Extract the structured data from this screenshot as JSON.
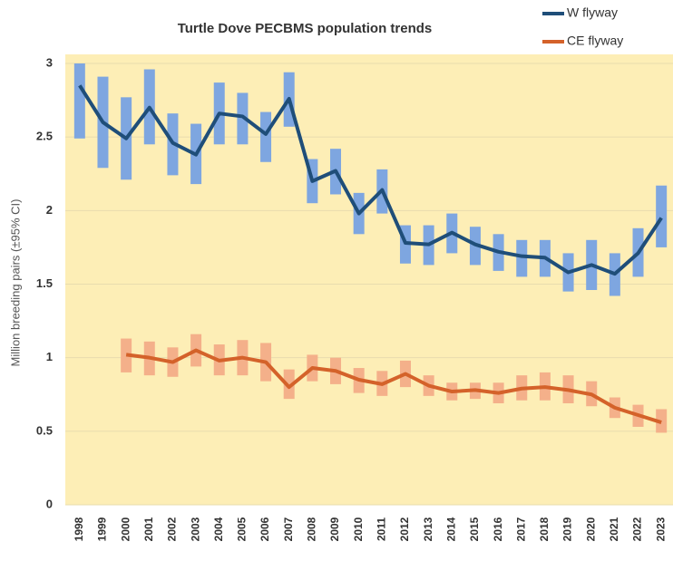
{
  "chart_data": {
    "type": "line",
    "title": "Turtle Dove PECBMS population trends",
    "ylabel": "Million breeding pairs (±95% CI)",
    "categories": [
      "1998",
      "1999",
      "2000",
      "2001",
      "2002",
      "2003",
      "2004",
      "2005",
      "2006",
      "2007",
      "2008",
      "2009",
      "2010",
      "2011",
      "2012",
      "2013",
      "2014",
      "2015",
      "2016",
      "2017",
      "2018",
      "2019",
      "2020",
      "2021",
      "2022",
      "2023"
    ],
    "series": [
      {
        "name": "W flyway",
        "color": "#1f4e79",
        "ci_color": "#7ea6e0",
        "values": [
          2.85,
          2.6,
          2.49,
          2.7,
          2.46,
          2.38,
          2.66,
          2.64,
          2.52,
          2.76,
          2.2,
          2.27,
          1.98,
          2.14,
          1.78,
          1.77,
          1.85,
          1.77,
          1.72,
          1.69,
          1.68,
          1.58,
          1.63,
          1.57,
          1.71,
          1.95
        ],
        "lower": [
          2.49,
          2.29,
          2.21,
          2.45,
          2.24,
          2.18,
          2.45,
          2.45,
          2.33,
          2.57,
          2.05,
          2.11,
          1.84,
          1.98,
          1.64,
          1.63,
          1.71,
          1.63,
          1.59,
          1.55,
          1.55,
          1.45,
          1.46,
          1.42,
          1.55,
          1.75
        ],
        "upper": [
          3.0,
          2.91,
          2.77,
          2.96,
          2.66,
          2.59,
          2.87,
          2.8,
          2.67,
          2.94,
          2.35,
          2.42,
          2.12,
          2.28,
          1.9,
          1.9,
          1.98,
          1.89,
          1.84,
          1.8,
          1.8,
          1.71,
          1.8,
          1.71,
          1.88,
          2.17
        ]
      },
      {
        "name": "CE flyway",
        "color": "#d4622a",
        "ci_color": "#f4b08a",
        "values": [
          null,
          null,
          1.02,
          1.0,
          0.97,
          1.05,
          0.98,
          1.0,
          0.97,
          0.8,
          0.93,
          0.91,
          0.85,
          0.82,
          0.89,
          0.81,
          0.77,
          0.78,
          0.76,
          0.79,
          0.8,
          0.78,
          0.75,
          0.66,
          0.61,
          0.56
        ],
        "lower": [
          null,
          null,
          0.9,
          0.88,
          0.87,
          0.94,
          0.88,
          0.88,
          0.84,
          0.72,
          0.84,
          0.82,
          0.76,
          0.74,
          0.8,
          0.74,
          0.71,
          0.72,
          0.69,
          0.71,
          0.71,
          0.69,
          0.67,
          0.59,
          0.53,
          0.49
        ],
        "upper": [
          null,
          null,
          1.13,
          1.11,
          1.07,
          1.16,
          1.09,
          1.12,
          1.1,
          0.92,
          1.02,
          1.0,
          0.93,
          0.91,
          0.98,
          0.88,
          0.83,
          0.83,
          0.83,
          0.88,
          0.9,
          0.88,
          0.84,
          0.73,
          0.68,
          0.65
        ]
      }
    ],
    "ylim": [
      0,
      3
    ],
    "yticks": [
      0,
      0.5,
      1,
      1.5,
      2,
      2.5,
      3
    ],
    "grid": true,
    "legend": "top-right"
  }
}
